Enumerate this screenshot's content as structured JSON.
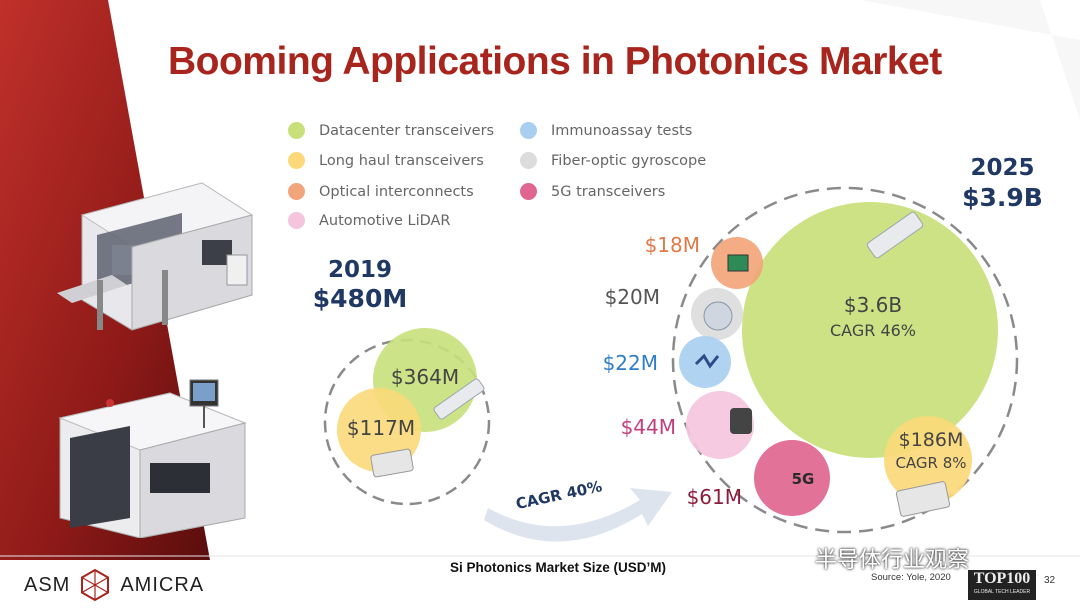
{
  "slide": {
    "title": "Booming Applications in Photonics Market",
    "caption": "Si Photonics Market Size (USD’M)",
    "source": "Source: Yole, 2020",
    "page_number": "32",
    "logo_left": "ASM",
    "logo_right": "AMICRA",
    "watermark": "半导体行业观察",
    "badge_big": "TOP100",
    "badge_small": "GLOBAL TECH LEADER"
  },
  "legend": [
    {
      "label": "Datacenter transceivers",
      "color": "#c8e07a"
    },
    {
      "label": "Long haul transceivers",
      "color": "#fbd97a"
    },
    {
      "label": "Optical interconnects",
      "color": "#f2a57a"
    },
    {
      "label": "Automotive LiDAR",
      "color": "#f5c5de"
    },
    {
      "label": "Immunoassay tests",
      "color": "#a9cff0"
    },
    {
      "label": "Fiber-optic gyroscope",
      "color": "#dcdcdc"
    },
    {
      "label": "5G transceivers",
      "color": "#e0668f"
    }
  ],
  "chart_data": [
    {
      "type": "bubble",
      "year": "2019",
      "total": "$480M",
      "bubbles": [
        {
          "segment": "Datacenter transceivers",
          "label": "$364M",
          "value": 364
        },
        {
          "segment": "Long haul transceivers",
          "label": "$117M",
          "value": 117
        }
      ]
    },
    {
      "type": "bubble",
      "year": "2025",
      "total": "$3.9B",
      "bubbles": [
        {
          "segment": "Datacenter transceivers",
          "label": "$3.6B",
          "sublabel": "CAGR 46%",
          "value": 3600
        },
        {
          "segment": "Long haul transceivers",
          "label": "$186M",
          "sublabel": "CAGR 8%",
          "value": 186
        },
        {
          "segment": "Optical interconnects",
          "label": "$18M",
          "value": 18
        },
        {
          "segment": "Fiber-optic gyroscope",
          "label": "$20M",
          "value": 20
        },
        {
          "segment": "Immunoassay tests",
          "label": "$22M",
          "value": 22
        },
        {
          "segment": "Automotive LiDAR",
          "label": "$44M",
          "value": 44
        },
        {
          "segment": "5G transceivers",
          "label": "$61M",
          "value": 61
        }
      ]
    }
  ],
  "growth": {
    "label": "CAGR 40%"
  }
}
